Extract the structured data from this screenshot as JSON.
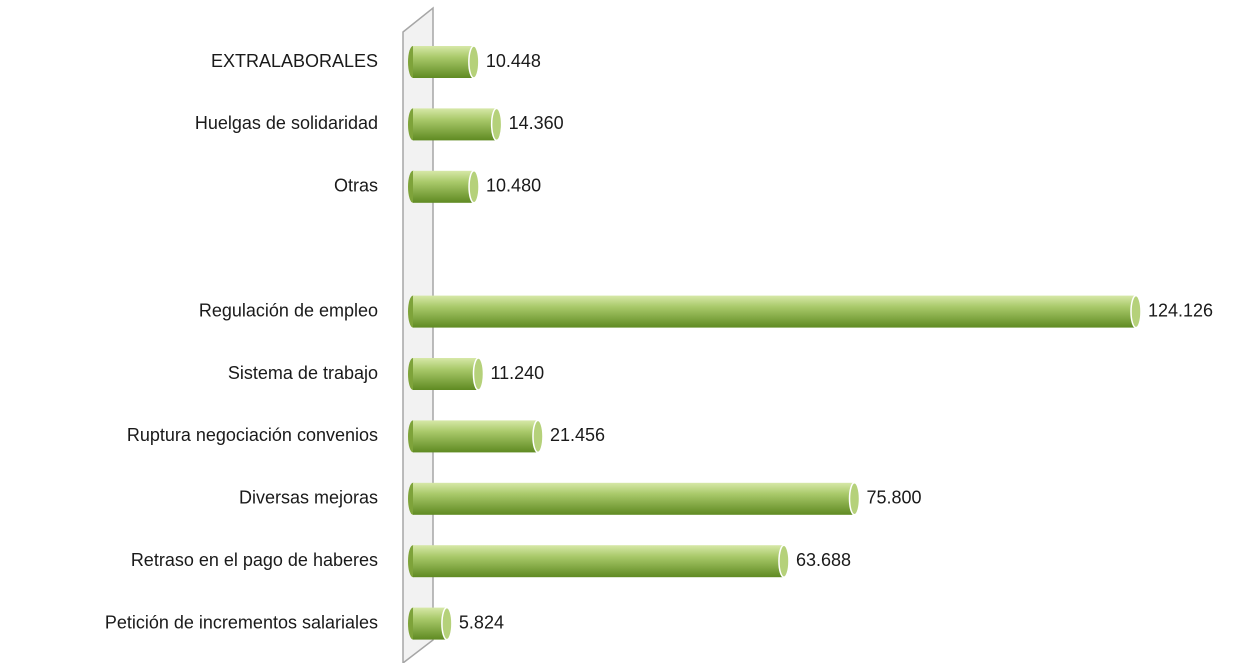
{
  "chart_data": {
    "type": "bar",
    "orientation": "horizontal",
    "categories": [
      "EXTRALABORALES",
      "Huelgas de solidaridad",
      "Otras",
      null,
      "Regulación de empleo",
      "Sistema de trabajo",
      "Ruptura negociación convenios",
      "Diversas mejoras",
      "Retraso en el pago de haberes",
      "Petición de incrementos salariales"
    ],
    "values": [
      10448,
      14360,
      10480,
      null,
      124126,
      11240,
      21456,
      75800,
      63688,
      5824
    ],
    "value_labels": [
      "10.448",
      "14.360",
      "10.480",
      null,
      "124.126",
      "11.240",
      "21.456",
      "75.800",
      "63.688",
      "5.824"
    ],
    "color": "#9bbb59"
  }
}
